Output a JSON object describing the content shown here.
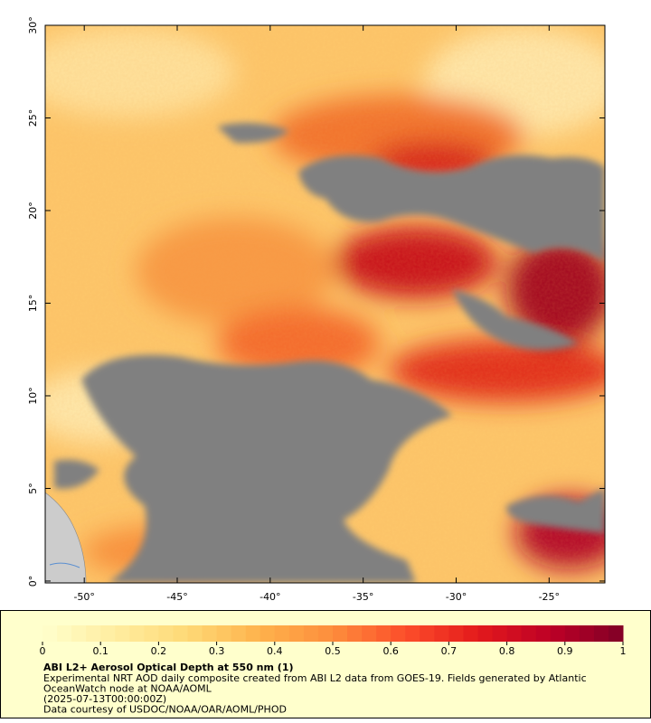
{
  "map": {
    "xlim": [
      -52.1,
      -22
    ],
    "ylim": [
      -0.1,
      30
    ],
    "xticks": [
      {
        "value": -50,
        "label": "-50°"
      },
      {
        "value": -45,
        "label": "-45°"
      },
      {
        "value": -40,
        "label": "-40°"
      },
      {
        "value": -35,
        "label": "-35°"
      },
      {
        "value": -30,
        "label": "-30°"
      },
      {
        "value": -25,
        "label": "-25°"
      }
    ],
    "yticks": [
      {
        "value": 0,
        "label": "0°"
      },
      {
        "value": 5,
        "label": "5°"
      },
      {
        "value": 10,
        "label": "10°"
      },
      {
        "value": 15,
        "label": "15°"
      },
      {
        "value": 20,
        "label": "20°"
      },
      {
        "value": 25,
        "label": "25°"
      },
      {
        "value": 30,
        "label": "30°"
      }
    ]
  },
  "colorbar": {
    "lim": [
      0,
      1
    ],
    "ticks": [
      0,
      0.1,
      0.2,
      0.3,
      0.4,
      0.5,
      0.6,
      0.7,
      0.8,
      0.9,
      1
    ],
    "colors": [
      "#ffffcc",
      "#ffeda0",
      "#fed976",
      "#feb24c",
      "#fd8d3c",
      "#fc4e2a",
      "#e31a1c",
      "#bd0026",
      "#800026"
    ],
    "steps": 40
  },
  "caption": {
    "title": "ABI L2+ Aerosol Optical Depth at 550 nm (1)",
    "lines": [
      "Experimental NRT AOD daily composite created from ABI L2 data from GOES-19. Fields generated by Atlantic",
      "OceanWatch node at NOAA/AOML",
      "(2025-07-13T00:00:00Z)",
      "Data courtesy of USDOC/NOAA/OAR/AOML/PHOD"
    ]
  }
}
